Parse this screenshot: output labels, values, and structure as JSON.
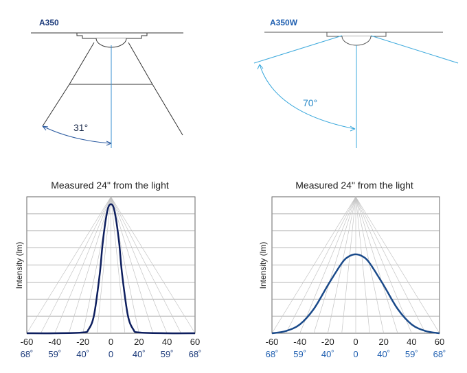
{
  "top_left": {
    "model": "A350",
    "angle_label": "31°",
    "colors": {
      "model": "#1b3a7a",
      "lines": "#333333",
      "beam": "#3a8fd0",
      "arc": "#2a5aa0"
    }
  },
  "top_right": {
    "model": "A350W",
    "angle_label": "70°",
    "colors": {
      "model": "#1f5fb0",
      "lines": "#555555",
      "beam": "#3aa8dc",
      "arc": "#3aa8dc"
    }
  },
  "panels": [
    {
      "title": "Measured 24\" from the light",
      "ylabel": "Intensity (lm)",
      "x_ticks": [
        "-60",
        "-40",
        "-20",
        "0",
        "20",
        "40",
        "60"
      ],
      "angle_ticks": [
        "68˚",
        "59˚",
        "40˚",
        "0",
        "40˚",
        "59˚",
        "68˚"
      ],
      "curve_color": "#0d1e5e",
      "angle_color": "#1b3a7a"
    },
    {
      "title": "Measured 24\" from the light",
      "ylabel": "Intensity (lm)",
      "x_ticks": [
        "-60",
        "-40",
        "-20",
        "0",
        "20",
        "40",
        "60"
      ],
      "angle_ticks": [
        "68˚",
        "59˚",
        "40˚",
        "0",
        "40˚",
        "59˚",
        "68˚"
      ],
      "curve_color": "#1a4a8a",
      "angle_color": "#1f5fb0"
    }
  ],
  "chart_data": [
    {
      "type": "line",
      "x": [
        -60,
        -40,
        -20,
        -16,
        -12,
        -8,
        -6,
        -4,
        -2,
        0,
        2,
        4,
        6,
        8,
        12,
        16,
        20,
        40,
        60
      ],
      "series": [
        {
          "values": [
            0,
            0,
            0.1,
            0.5,
            2.5,
            8,
            12,
            15,
            17,
            17.5,
            17,
            15,
            12,
            8,
            2.5,
            0.5,
            0.1,
            0,
            0
          ]
        }
      ],
      "xlim": [
        -60,
        60
      ],
      "grid": true
    },
    {
      "type": "line",
      "x": [
        -60,
        -50,
        -40,
        -30,
        -20,
        -10,
        -5,
        0,
        5,
        10,
        20,
        30,
        40,
        50,
        60
      ],
      "series": [
        {
          "values": [
            0,
            0.3,
            1.2,
            3.3,
            6.5,
            9.5,
            10.4,
            10.7,
            10.4,
            9.5,
            6.5,
            3.3,
            1.2,
            0.3,
            0
          ]
        }
      ],
      "xlim": [
        -60,
        60
      ],
      "grid": true
    }
  ]
}
